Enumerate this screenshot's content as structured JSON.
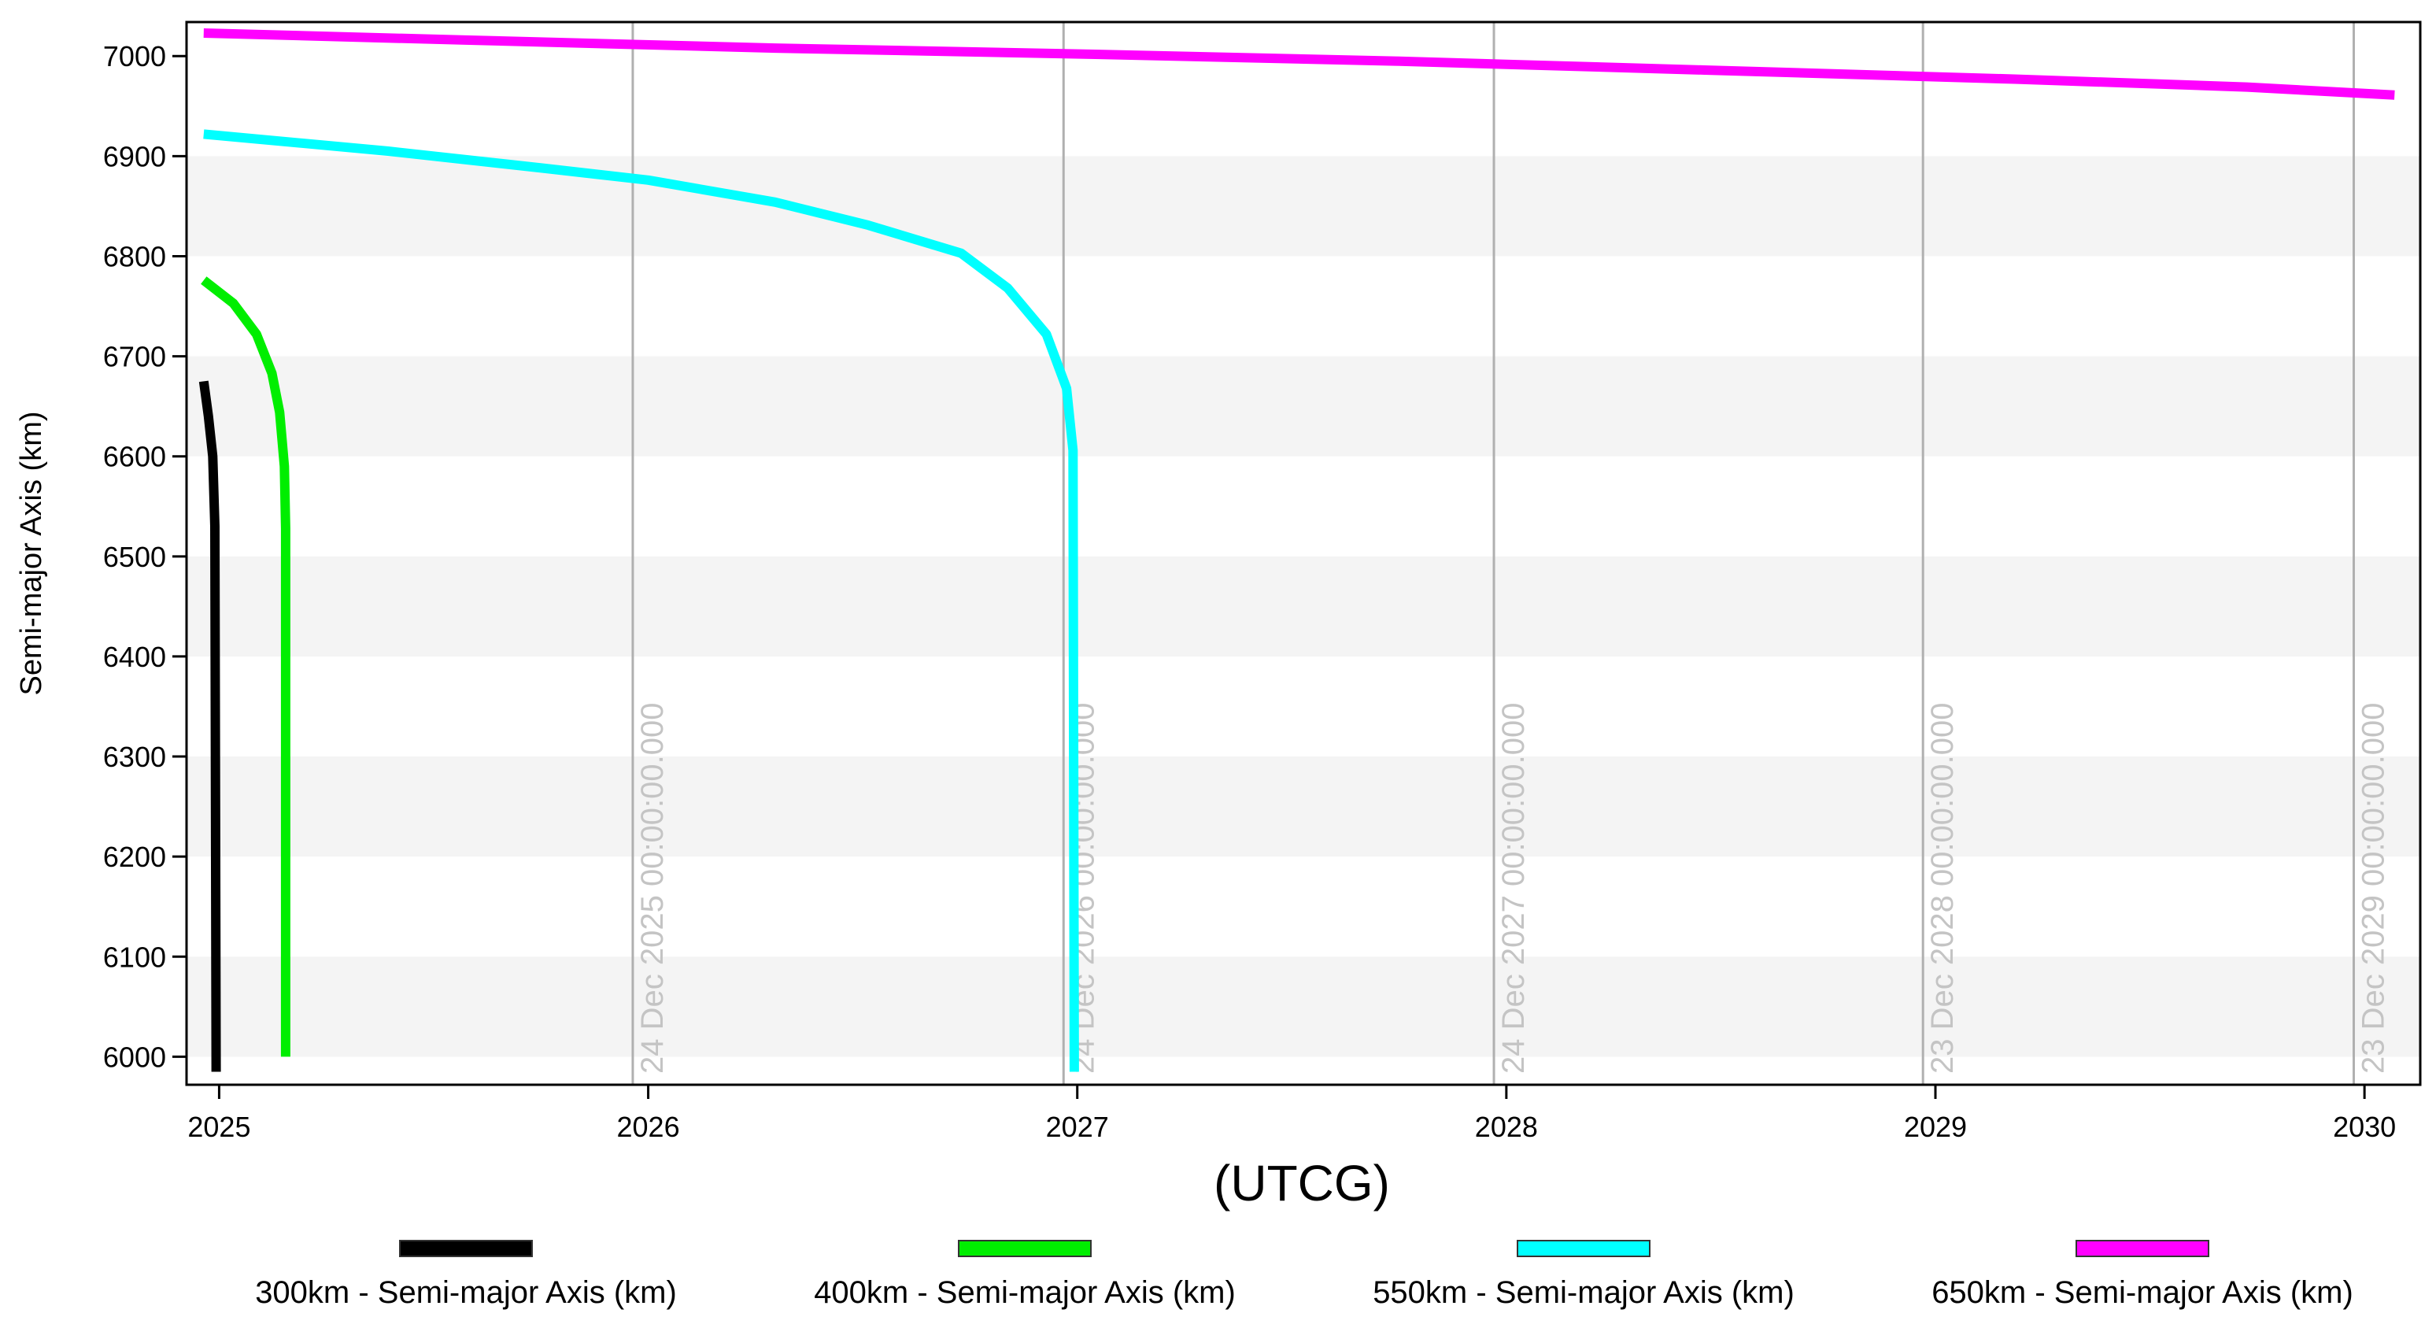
{
  "chart_data": {
    "type": "line",
    "x_label": "(UTCG)",
    "y_label": "Semi-major Axis (km)",
    "xlim": [
      2024.924,
      2030.13
    ],
    "xticks": [
      2025,
      2026,
      2027,
      2028,
      2029,
      2030
    ],
    "ylim": [
      5972,
      7034
    ],
    "yticks": [
      6000,
      6100,
      6200,
      6300,
      6400,
      6500,
      6600,
      6700,
      6800,
      6900,
      7000
    ],
    "bands": true,
    "series": [
      {
        "name": "300km - Semi-major Axis (km)",
        "color": "#000000",
        "x": [
          2024.964,
          2024.975,
          2024.985,
          2024.99,
          2024.993
        ],
        "values": [
          6675,
          6640,
          6600,
          6530,
          5985
        ]
      },
      {
        "name": "400km - Semi-major Axis (km)",
        "color": "#00ee00",
        "x": [
          2024.964,
          2025.033,
          2025.087,
          2025.123,
          2025.141,
          2025.152,
          2025.155,
          2025.155
        ],
        "values": [
          6776,
          6753,
          6722,
          6683,
          6644,
          6590,
          6528,
          6000
        ]
      },
      {
        "name": "550km - Semi-major Axis (km)",
        "color": "#00ffff",
        "x": [
          2024.964,
          2025.394,
          2025.755,
          2026.0,
          2026.296,
          2026.513,
          2026.729,
          2026.838,
          2026.928,
          2026.975,
          2026.99,
          2026.993
        ],
        "values": [
          6922,
          6905,
          6888,
          6876,
          6854,
          6831,
          6803,
          6768,
          6722,
          6668,
          6606,
          5985
        ]
      },
      {
        "name": "650km - Semi-major Axis (km)",
        "color": "#ff00ff",
        "x": [
          2024.964,
          2025.574,
          2026.296,
          2027.018,
          2027.74,
          2028.462,
          2029.184,
          2029.726,
          2030.07
        ],
        "values": [
          7023,
          7016,
          7008,
          7002,
          6995,
          6986,
          6977,
          6969,
          6961
        ]
      }
    ],
    "annotations": [
      {
        "x": 2025.964,
        "text": "24 Dec 2025 00:00:00.000"
      },
      {
        "x": 2026.968,
        "text": "24 Dec 2026 00:00:00.000"
      },
      {
        "x": 2027.971,
        "text": "24 Dec 2027 00:00:00.000"
      },
      {
        "x": 2028.971,
        "text": "23 Dec 2028 00:00:00.000"
      },
      {
        "x": 2029.975,
        "text": "23 Dec 2029 00:00:00.000"
      }
    ]
  }
}
